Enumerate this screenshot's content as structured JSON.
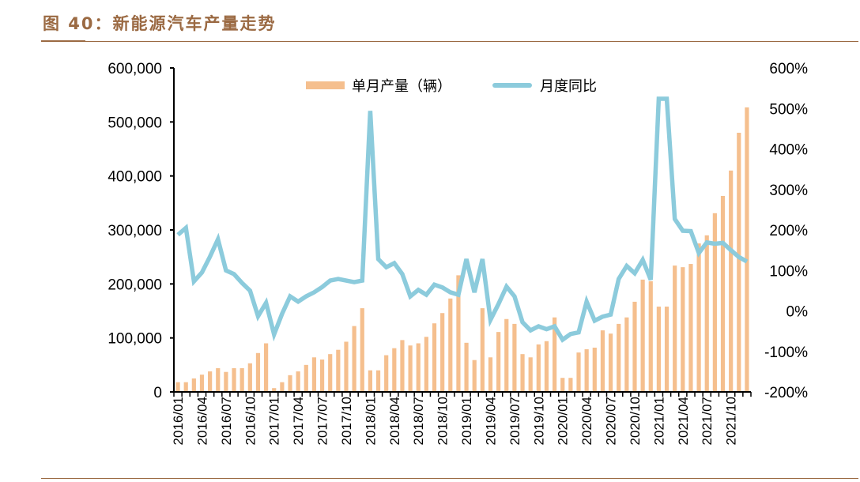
{
  "title": "图 40：新能源汽车产量走势",
  "chart_data": {
    "type": "bar+line",
    "title": "图 40：新能源汽车产量走势",
    "legend_position": "top",
    "grid": false,
    "colors": {
      "bar": "#f5bf8e",
      "line": "#8ccbdc",
      "title": "#9b6a43"
    },
    "y_left": {
      "range": [
        0,
        600000
      ],
      "ticks": [
        "0",
        "100,000",
        "200,000",
        "300,000",
        "400,000",
        "500,000",
        "600,000"
      ]
    },
    "y_right": {
      "range": [
        -200,
        600
      ],
      "unit": "%",
      "ticks": [
        "-200%",
        "-100%",
        "0%",
        "100%",
        "200%",
        "300%",
        "400%",
        "500%",
        "600%"
      ]
    },
    "x_tick_labels": [
      "2016/01",
      "2016/04",
      "2016/07",
      "2016/10",
      "2017/01",
      "2017/04",
      "2017/07",
      "2017/10",
      "2018/01",
      "2018/04",
      "2018/07",
      "2018/10",
      "2019/01",
      "2019/04",
      "2019/07",
      "2019/10",
      "2020/01",
      "2020/04",
      "2020/07",
      "2020/10",
      "2021/01",
      "2021/04",
      "2021/07",
      "2021/10"
    ],
    "categories": [
      "2016/01",
      "2016/02",
      "2016/03",
      "2016/04",
      "2016/05",
      "2016/06",
      "2016/07",
      "2016/08",
      "2016/09",
      "2016/10",
      "2016/11",
      "2016/12",
      "2017/01",
      "2017/02",
      "2017/03",
      "2017/04",
      "2017/05",
      "2017/06",
      "2017/07",
      "2017/08",
      "2017/09",
      "2017/10",
      "2017/11",
      "2017/12",
      "2018/01",
      "2018/02",
      "2018/03",
      "2018/04",
      "2018/05",
      "2018/06",
      "2018/07",
      "2018/08",
      "2018/09",
      "2018/10",
      "2018/11",
      "2018/12",
      "2019/01",
      "2019/02",
      "2019/03",
      "2019/04",
      "2019/05",
      "2019/06",
      "2019/07",
      "2019/08",
      "2019/09",
      "2019/10",
      "2019/11",
      "2019/12",
      "2020/01",
      "2020/02",
      "2020/03",
      "2020/04",
      "2020/05",
      "2020/06",
      "2020/07",
      "2020/08",
      "2020/09",
      "2020/10",
      "2020/11",
      "2020/12",
      "2021/01",
      "2021/02",
      "2021/03",
      "2021/04",
      "2021/05",
      "2021/06",
      "2021/07",
      "2021/08",
      "2021/09",
      "2021/10",
      "2021/11",
      "2021/12"
    ],
    "series": [
      {
        "name": "单月产量（辆）",
        "type": "bar",
        "axis": "left",
        "values": [
          18000,
          18000,
          25000,
          32000,
          38000,
          44000,
          37000,
          44000,
          44000,
          53000,
          72000,
          90000,
          7000,
          18000,
          31000,
          38000,
          50000,
          64000,
          60000,
          70000,
          78000,
          93000,
          122000,
          155000,
          40000,
          40000,
          68000,
          81000,
          96000,
          86000,
          90000,
          102000,
          127000,
          146000,
          173000,
          216000,
          91000,
          59000,
          155000,
          64000,
          111000,
          135000,
          126000,
          70000,
          64000,
          88000,
          94000,
          138000,
          26000,
          26000,
          73000,
          79000,
          82000,
          114000,
          108000,
          126000,
          138000,
          167000,
          208000,
          205000,
          158000,
          158000,
          234000,
          231000,
          237000,
          275000,
          290000,
          331000,
          363000,
          410000,
          480000,
          527000
        ]
      },
      {
        "name": "月度同比",
        "type": "line",
        "axis": "right",
        "values": [
          188,
          205,
          73,
          95,
          134,
          177,
          100,
          91,
          69,
          50,
          -13,
          20,
          -58,
          -7,
          36,
          23,
          36,
          46,
          59,
          75,
          79,
          75,
          71,
          75,
          494,
          128,
          108,
          118,
          91,
          36,
          52,
          40,
          65,
          58,
          46,
          40,
          128,
          46,
          128,
          -22,
          17,
          60,
          36,
          -28,
          -48,
          -38,
          -45,
          -38,
          -71,
          -57,
          -53,
          23,
          -24,
          -14,
          -9,
          79,
          111,
          93,
          126,
          77,
          524,
          524,
          227,
          198,
          197,
          143,
          169,
          166,
          168,
          150,
          133,
          122
        ]
      }
    ]
  }
}
